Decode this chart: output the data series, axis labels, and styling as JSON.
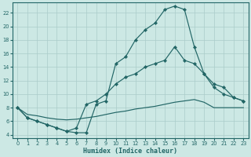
{
  "bg_color": "#cce8e4",
  "grid_color": "#aaccca",
  "line_color": "#226666",
  "xlabel": "Humidex (Indice chaleur)",
  "xlim": [
    -0.5,
    23.5
  ],
  "ylim": [
    3.5,
    23.5
  ],
  "xticks": [
    0,
    1,
    2,
    3,
    4,
    5,
    6,
    7,
    8,
    9,
    10,
    11,
    12,
    13,
    14,
    15,
    16,
    17,
    18,
    19,
    20,
    21,
    22,
    23
  ],
  "yticks": [
    4,
    6,
    8,
    10,
    12,
    14,
    16,
    18,
    20,
    22
  ],
  "line1_x": [
    0,
    1,
    2,
    3,
    4,
    5,
    6,
    7,
    8,
    9,
    10,
    11,
    12,
    13,
    14,
    15,
    16,
    17,
    18,
    19,
    20,
    21,
    22,
    23
  ],
  "line1_y": [
    8.0,
    6.5,
    6.0,
    5.5,
    5.0,
    4.5,
    4.3,
    4.3,
    8.5,
    9.0,
    14.5,
    15.5,
    18.0,
    19.5,
    20.5,
    22.5,
    23.0,
    22.5,
    17.0,
    13.0,
    11.5,
    11.0,
    9.5,
    9.0
  ],
  "line1_has_markers": true,
  "line2_x": [
    0,
    1,
    2,
    3,
    4,
    5,
    6,
    7,
    8,
    9,
    10,
    11,
    12,
    13,
    14,
    15,
    16,
    17,
    18,
    19,
    20,
    21,
    22,
    23
  ],
  "line2_y": [
    8.0,
    6.5,
    6.0,
    5.5,
    5.0,
    4.5,
    5.0,
    8.5,
    9.0,
    10.0,
    11.5,
    12.5,
    13.0,
    14.0,
    14.5,
    15.0,
    17.0,
    15.0,
    14.5,
    13.0,
    11.0,
    10.0,
    9.5,
    9.0
  ],
  "line2_has_markers": true,
  "line3_x": [
    0,
    1,
    2,
    3,
    4,
    5,
    6,
    7,
    8,
    9,
    10,
    11,
    12,
    13,
    14,
    15,
    16,
    17,
    18,
    19,
    20,
    21,
    22,
    23
  ],
  "line3_y": [
    8.0,
    7.0,
    6.8,
    6.5,
    6.3,
    6.2,
    6.3,
    6.5,
    6.7,
    7.0,
    7.3,
    7.5,
    7.8,
    8.0,
    8.2,
    8.5,
    8.8,
    9.0,
    9.2,
    8.8,
    8.0,
    8.0,
    8.0,
    8.0
  ],
  "line3_has_markers": false,
  "figsize": [
    3.2,
    2.0
  ],
  "dpi": 100
}
